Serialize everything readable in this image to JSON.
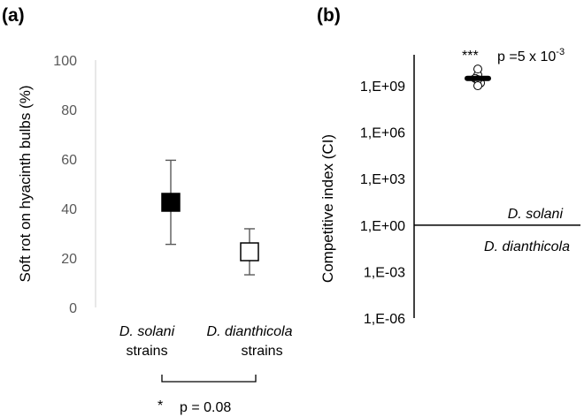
{
  "chart_data": [
    {
      "panel_label": "(a)",
      "type": "scatter",
      "ylabel": "Soft rot on hyacinth bulbs (%)",
      "ylim": [
        0,
        100
      ],
      "yticks": [
        "0",
        "20",
        "40",
        "60",
        "80",
        "100"
      ],
      "categories": [
        {
          "name": "D. solani",
          "suffix": "strains"
        },
        {
          "name": "D. dianthicola",
          "suffix": "strains"
        }
      ],
      "values": [
        42.5,
        22.5
      ],
      "error_low": [
        25.5,
        13.2
      ],
      "error_high": [
        59.5,
        31.8
      ],
      "markers": [
        "filled-square",
        "open-square"
      ],
      "annotation": {
        "stars": "*",
        "text": "p = 0.08"
      },
      "grid": false
    },
    {
      "panel_label": "(b)",
      "type": "scatter",
      "ylabel": "Competitive index (CI)",
      "yscale": "log",
      "ylim": [
        1e-06,
        100000000000.0
      ],
      "yticks": [
        "1,E-06",
        "1,E-03",
        "1,E+00",
        "1,E+03",
        "1,E+06",
        "1,E+09"
      ],
      "reference_line": 1,
      "above_label": "D. solani",
      "below_label": "D. dianthicola",
      "points": [
        5000000000.0,
        12000000000.0,
        3000000000.0,
        1500000000.0,
        2500000000.0,
        1000000000.0
      ],
      "mean": 3000000000.0,
      "annotation": {
        "stars": "***",
        "text": "p =5 x 10",
        "exponent": "-3"
      },
      "grid": false
    }
  ]
}
